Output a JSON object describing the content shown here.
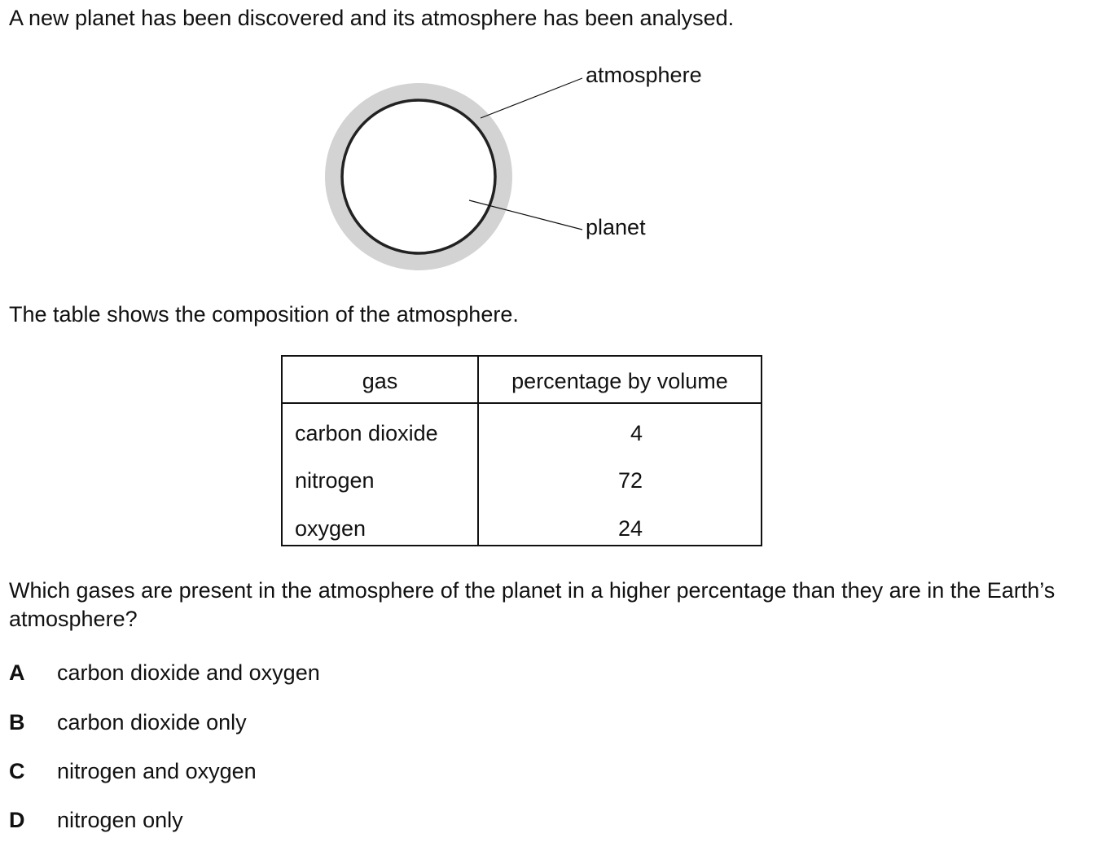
{
  "intro": "A new planet has been discovered and its atmosphere has been analysed.",
  "diagram": {
    "labels": {
      "atmosphere": "atmosphere",
      "planet": "planet"
    },
    "colors": {
      "atmosphere": "#d3d3d3",
      "planet_outline": "#222222",
      "planet_fill": "#ffffff"
    }
  },
  "table_intro": "The table shows the composition of the atmosphere.",
  "table": {
    "headers": [
      "gas",
      "percentage by volume"
    ],
    "rows": [
      {
        "gas": "carbon dioxide",
        "percentage": "4"
      },
      {
        "gas": "nitrogen",
        "percentage": "72"
      },
      {
        "gas": "oxygen",
        "percentage": "24"
      }
    ]
  },
  "question": "Which gases are present in the atmosphere of the planet in a higher percentage than they are in the Earth’s atmosphere?",
  "options": [
    {
      "letter": "A",
      "text": "carbon dioxide and oxygen"
    },
    {
      "letter": "B",
      "text": "carbon dioxide only"
    },
    {
      "letter": "C",
      "text": "nitrogen and oxygen"
    },
    {
      "letter": "D",
      "text": "nitrogen only"
    }
  ]
}
